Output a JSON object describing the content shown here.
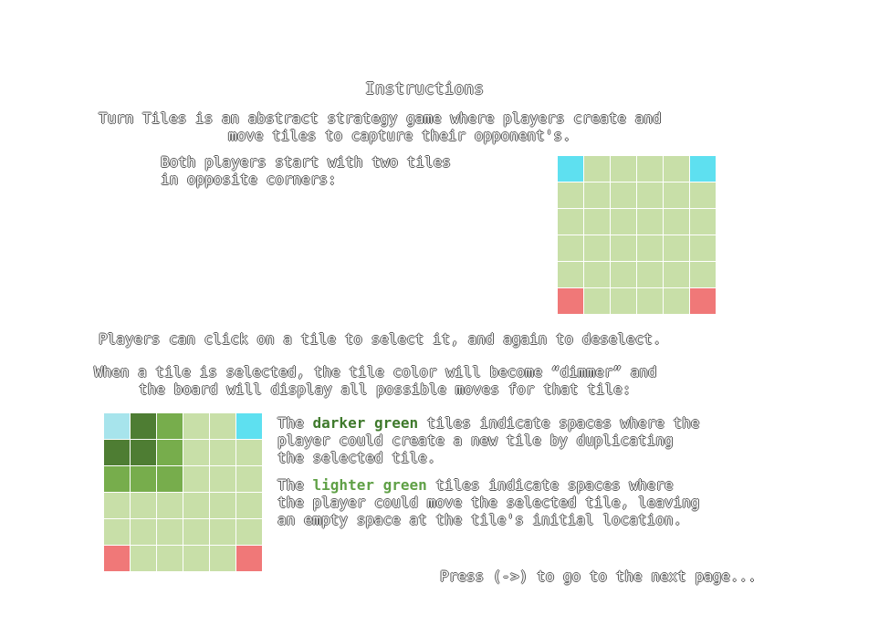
{
  "title": "Instructions",
  "intro": [
    "Turn Tiles is an abstract strategy game where players create and",
    "move tiles to capture their opponent's."
  ],
  "start": [
    "Both players start with two tiles",
    "in opposite corners:"
  ],
  "click_text": "Players can click on a tile to select it, and again to deselect.",
  "selected": [
    "When a tile is selected, the tile color will become “dimmer” and",
    "the board will display all possible moves for that tile:"
  ],
  "darker": {
    "pre": "The ",
    "em": "darker green",
    "post": " tiles indicate spaces where the",
    "line2": "player could create a new tile by duplicating",
    "line3": "the selected tile."
  },
  "lighter": {
    "pre": "The ",
    "em": "lighter green",
    "post": " tiles indicate spaces where",
    "line2": "the player could move the selected tile, leaving",
    "line3": "an empty space at the tile's initial location."
  },
  "footer": "Press (->) to go to the next page...",
  "colors": {
    "board_green": "#c8dfa8",
    "blue_player": "#5ee0f0",
    "red_player": "#f07878",
    "darker_green": "#4e7d33",
    "lighter_green": "#77ad4c"
  },
  "board1": [
    [
      "blue",
      "g",
      "g",
      "g",
      "g",
      "blue"
    ],
    [
      "g",
      "g",
      "g",
      "g",
      "g",
      "g"
    ],
    [
      "g",
      "g",
      "g",
      "g",
      "g",
      "g"
    ],
    [
      "g",
      "g",
      "g",
      "g",
      "g",
      "g"
    ],
    [
      "g",
      "g",
      "g",
      "g",
      "g",
      "g"
    ],
    [
      "red",
      "g",
      "g",
      "g",
      "g",
      "red"
    ]
  ],
  "board2": [
    [
      "dimblue",
      "dark",
      "light",
      "g",
      "g",
      "blue"
    ],
    [
      "dark",
      "dark",
      "light",
      "g",
      "g",
      "g"
    ],
    [
      "light",
      "light",
      "light",
      "g",
      "g",
      "g"
    ],
    [
      "g",
      "g",
      "g",
      "g",
      "g",
      "g"
    ],
    [
      "g",
      "g",
      "g",
      "g",
      "g",
      "g"
    ],
    [
      "red",
      "g",
      "g",
      "g",
      "g",
      "red"
    ]
  ]
}
